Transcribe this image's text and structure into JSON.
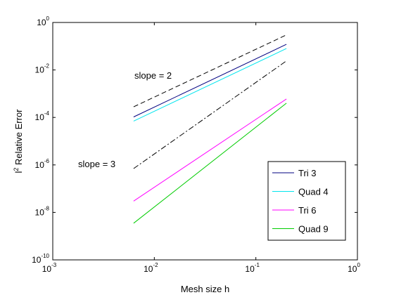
{
  "chart_data": {
    "type": "line",
    "title": "",
    "xlabel": "Mesh size h",
    "ylabel_base": "l",
    "ylabel_sup": "2",
    "ylabel_rest": " Relative Error",
    "xscale": "log",
    "yscale": "log",
    "xlim": [
      0.001,
      1
    ],
    "ylim": [
      1e-10,
      1
    ],
    "grid": false,
    "legend_position": "lower-right",
    "x_ticks": [
      {
        "base": "10",
        "exp": "-3",
        "value": 0.001
      },
      {
        "base": "10",
        "exp": "-2",
        "value": 0.01
      },
      {
        "base": "10",
        "exp": "-1",
        "value": 0.1
      },
      {
        "base": "10",
        "exp": "0",
        "value": 1
      }
    ],
    "y_ticks": [
      {
        "base": "10",
        "exp": "-10",
        "value": 1e-10
      },
      {
        "base": "10",
        "exp": "-8",
        "value": 1e-08
      },
      {
        "base": "10",
        "exp": "-6",
        "value": 1e-06
      },
      {
        "base": "10",
        "exp": "-4",
        "value": 0.0001
      },
      {
        "base": "10",
        "exp": "-2",
        "value": 0.01
      },
      {
        "base": "10",
        "exp": "0",
        "value": 1
      }
    ],
    "series": [
      {
        "name": "Tri 3",
        "color": "#000080",
        "dash": "solid",
        "x": [
          0.00625,
          0.2
        ],
        "y": [
          0.000105,
          0.12
        ]
      },
      {
        "name": "Quad 4",
        "color": "#00e5ee",
        "dash": "solid",
        "x": [
          0.00625,
          0.2
        ],
        "y": [
          7e-05,
          0.08
        ]
      },
      {
        "name": "Tri 6",
        "color": "#ff00ff",
        "dash": "solid",
        "x": [
          0.00625,
          0.2
        ],
        "y": [
          3e-08,
          0.0006
        ]
      },
      {
        "name": "Quad 9",
        "color": "#00cc00",
        "dash": "solid",
        "x": [
          0.00625,
          0.2
        ],
        "y": [
          3.5e-09,
          0.0004
        ]
      }
    ],
    "reference_lines": [
      {
        "label": "slope = 2",
        "color": "#000000",
        "dash": "dashed",
        "x": [
          0.00625,
          0.2
        ],
        "y": [
          0.00028,
          0.3
        ]
      },
      {
        "label": "slope = 3",
        "color": "#000000",
        "dash": "dashdot",
        "x": [
          0.00625,
          0.2
        ],
        "y": [
          7e-07,
          0.024
        ]
      }
    ]
  }
}
